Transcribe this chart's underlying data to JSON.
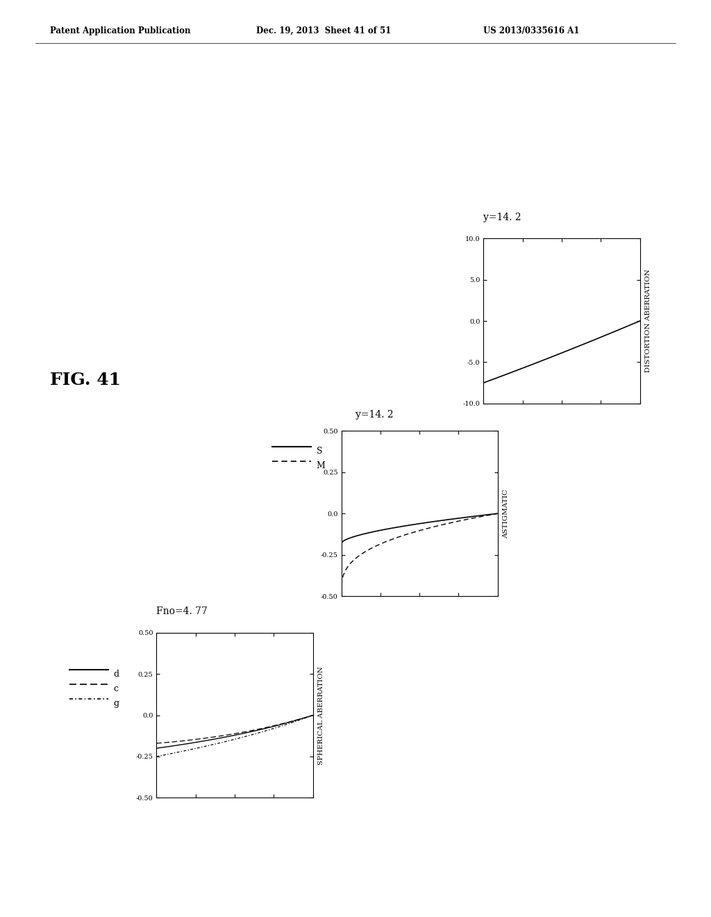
{
  "header_left": "Patent Application Publication",
  "header_mid": "Dec. 19, 2013  Sheet 41 of 51",
  "header_right": "US 2013/0335616 A1",
  "fig_label": "FIG. 41",
  "fno_label": "Fno=4. 77",
  "y_label_sph": "y=14. 2",
  "y_label_astig": "y=14. 2",
  "y_label_dist": "y=14. 2",
  "sph_ylim": [
    -0.5,
    0.5
  ],
  "sph_yticks": [
    -0.5,
    -0.25,
    0.0,
    0.25,
    0.5
  ],
  "sph_ylabel": "SPHERICAL ABERRATION",
  "astig_ylim": [
    -0.5,
    0.5
  ],
  "astig_yticks": [
    -0.5,
    -0.25,
    0.0,
    0.25,
    0.5
  ],
  "astig_ylabel": "ASTIGMATIC",
  "dist_ylim": [
    -10.0,
    10.0
  ],
  "dist_yticks": [
    -10.0,
    -5.0,
    0.0,
    5.0,
    10.0
  ],
  "dist_ylabel": "DISTORTION ABERRATION",
  "xlim": [
    0.0,
    1.0
  ],
  "background_color": "#ffffff",
  "line_color": "#000000"
}
